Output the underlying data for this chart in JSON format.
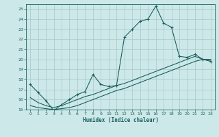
{
  "title": "",
  "xlabel": "Humidex (Indice chaleur)",
  "background_color": "#cde8e8",
  "grid_color": "#a8c8c8",
  "line_color": "#1a6060",
  "xlim": [
    -0.5,
    23.5
  ],
  "ylim": [
    15,
    25.5
  ],
  "xticks": [
    0,
    1,
    2,
    3,
    4,
    5,
    6,
    7,
    8,
    9,
    10,
    11,
    12,
    13,
    14,
    15,
    16,
    17,
    18,
    19,
    20,
    21,
    22,
    23
  ],
  "yticks": [
    15,
    16,
    17,
    18,
    19,
    20,
    21,
    22,
    23,
    24,
    25
  ],
  "line1_x": [
    0,
    1,
    2,
    3,
    4,
    5,
    6,
    7,
    8,
    9,
    10,
    11,
    12,
    13,
    14,
    15,
    16,
    17,
    18,
    19,
    20,
    21,
    22,
    23
  ],
  "line1_y": [
    17.5,
    16.7,
    15.9,
    14.9,
    15.5,
    16.0,
    16.5,
    16.8,
    18.5,
    17.5,
    17.3,
    17.4,
    22.2,
    23.0,
    23.8,
    24.0,
    25.3,
    23.6,
    23.2,
    20.3,
    20.2,
    20.5,
    20.0,
    19.8
  ],
  "line2_x": [
    0,
    1,
    2,
    3,
    4,
    5,
    6,
    7,
    8,
    9,
    10,
    11,
    12,
    13,
    14,
    15,
    16,
    17,
    18,
    19,
    20,
    21,
    22,
    23
  ],
  "line2_y": [
    16.2,
    15.7,
    15.4,
    15.2,
    15.4,
    15.7,
    16.0,
    16.3,
    16.5,
    16.8,
    17.1,
    17.4,
    17.6,
    17.9,
    18.2,
    18.5,
    18.8,
    19.1,
    19.4,
    19.7,
    20.0,
    20.3,
    20.0,
    19.9
  ],
  "line3_x": [
    0,
    1,
    2,
    3,
    4,
    5,
    6,
    7,
    8,
    9,
    10,
    11,
    12,
    13,
    14,
    15,
    16,
    17,
    18,
    19,
    20,
    21,
    22,
    23
  ],
  "line3_y": [
    15.4,
    15.2,
    15.1,
    15.0,
    15.1,
    15.2,
    15.4,
    15.7,
    16.0,
    16.3,
    16.6,
    16.9,
    17.1,
    17.4,
    17.7,
    18.0,
    18.3,
    18.6,
    18.9,
    19.2,
    19.5,
    19.8,
    20.0,
    20.0
  ]
}
